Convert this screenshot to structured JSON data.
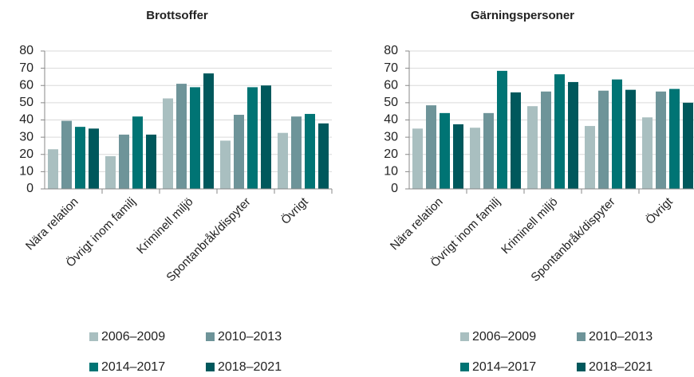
{
  "chart_data": [
    {
      "type": "bar",
      "title": "Brottsoffer",
      "categories": [
        "Nära relation",
        "Övrigt inom familj",
        "Kriminell miljö",
        "Spontanbråk/dispyter",
        "Övrigt"
      ],
      "series": [
        {
          "name": "2006–2009",
          "color": "#a9bfc0",
          "values": [
            23,
            19,
            52.5,
            28,
            32.5
          ]
        },
        {
          "name": "2010–2013",
          "color": "#6e9499",
          "values": [
            39.5,
            31.5,
            61,
            43,
            42
          ]
        },
        {
          "name": "2014–2017",
          "color": "#007474",
          "values": [
            36,
            42,
            59,
            59,
            43.5
          ]
        },
        {
          "name": "2018–2021",
          "color": "#00585c",
          "values": [
            35,
            31.5,
            67,
            60,
            38
          ]
        }
      ],
      "ylim": [
        0,
        80
      ],
      "yticks": [
        0,
        10,
        20,
        30,
        40,
        50,
        60,
        70,
        80
      ],
      "grid": true
    },
    {
      "type": "bar",
      "title": "Gärningspersoner",
      "categories": [
        "Nära relation",
        "Övrigt inom familj",
        "Kriminell miljö",
        "Spontanbråk/dispyter",
        "Övrigt"
      ],
      "series": [
        {
          "name": "2006–2009",
          "color": "#a9bfc0",
          "values": [
            35,
            35.5,
            48,
            36.5,
            41.5
          ]
        },
        {
          "name": "2010–2013",
          "color": "#6e9499",
          "values": [
            48.5,
            44,
            56.5,
            57,
            56.5
          ]
        },
        {
          "name": "2014–2017",
          "color": "#007474",
          "values": [
            44,
            68.5,
            66.5,
            63.5,
            58
          ]
        },
        {
          "name": "2018–2021",
          "color": "#00585c",
          "values": [
            37.5,
            56,
            62,
            57.5,
            50
          ]
        }
      ],
      "ylim": [
        0,
        80
      ],
      "yticks": [
        0,
        10,
        20,
        30,
        40,
        50,
        60,
        70,
        80
      ],
      "grid": true
    }
  ]
}
